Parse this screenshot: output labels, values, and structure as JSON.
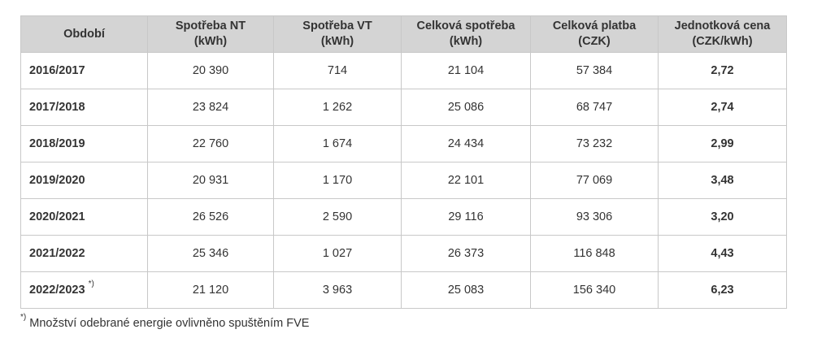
{
  "table": {
    "headers": [
      {
        "title": "Období",
        "unit": ""
      },
      {
        "title": "Spotřeba NT",
        "unit": "(kWh)"
      },
      {
        "title": "Spotřeba VT",
        "unit": "(kWh)"
      },
      {
        "title": "Celková spotřeba",
        "unit": "(kWh)"
      },
      {
        "title": "Celková platba",
        "unit": "(CZK)"
      },
      {
        "title": "Jednotková cena",
        "unit": "(CZK/kWh)"
      }
    ],
    "rows": [
      {
        "period": "2016/2017",
        "marker": "",
        "nt": "20 390",
        "vt": "714",
        "total": "21 104",
        "payment": "57 384",
        "price": "2,72"
      },
      {
        "period": "2017/2018",
        "marker": "",
        "nt": "23 824",
        "vt": "1 262",
        "total": "25 086",
        "payment": "68 747",
        "price": "2,74"
      },
      {
        "period": "2018/2019",
        "marker": "",
        "nt": "22 760",
        "vt": "1 674",
        "total": "24 434",
        "payment": "73 232",
        "price": "2,99"
      },
      {
        "period": "2019/2020",
        "marker": "",
        "nt": "20 931",
        "vt": "1 170",
        "total": "22 101",
        "payment": "77 069",
        "price": "3,48"
      },
      {
        "period": "2020/2021",
        "marker": "",
        "nt": "26 526",
        "vt": "2 590",
        "total": "29 116",
        "payment": "93 306",
        "price": "3,20"
      },
      {
        "period": "2021/2022",
        "marker": "",
        "nt": "25 346",
        "vt": "1 027",
        "total": "26 373",
        "payment": "116 848",
        "price": "4,43"
      },
      {
        "period": "2022/2023",
        "marker": "*)",
        "nt": "21 120",
        "vt": "3 963",
        "total": "25 083",
        "payment": "156 340",
        "price": "6,23"
      }
    ]
  },
  "footnote": {
    "marker": "*)",
    "text": " Množství odebrané energie ovlivněno spuštěním FVE"
  }
}
